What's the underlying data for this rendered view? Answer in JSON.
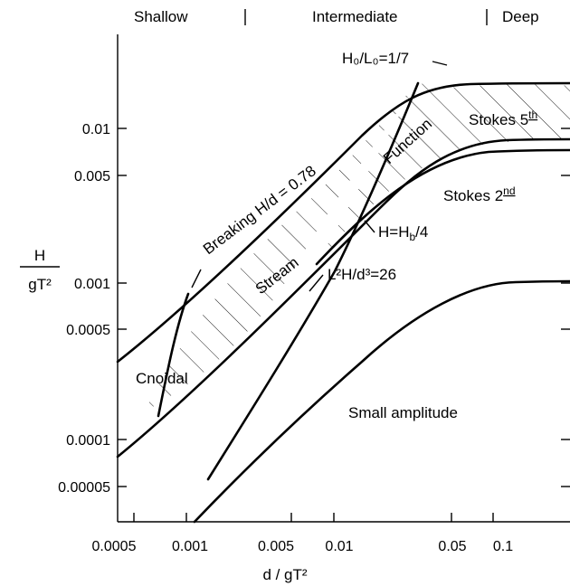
{
  "header": {
    "shallow": "Shallow",
    "intermediate": "Intermediate",
    "deep": "Deep"
  },
  "axes": {
    "x_label": "d / gT²",
    "y_label_num": "H",
    "y_label_den": "gT²",
    "x_ticks": [
      "0.0005",
      "0.001",
      "0.005",
      "0.01",
      "0.05",
      "0.1"
    ],
    "y_ticks": [
      "0.01",
      "0.005",
      "0.001",
      "0.0005",
      "0.0001",
      "0.00005"
    ]
  },
  "regions": {
    "stokes5": "Stokes 5",
    "stokes5_sup": "th",
    "stokes2": "Stokes 2",
    "stokes2_sup": "nd",
    "cnoidal": "Cnoidal",
    "small_amplitude": "Small amplitude",
    "stream": "Stream",
    "function": "Function"
  },
  "curve_labels": {
    "h0l0": "H₀/L₀=1/7",
    "breaking": "Breaking H/d = 0.78",
    "hb4": "H=H",
    "hb4_sub": "b",
    "hb4_end": "/4",
    "ursell": "L²H/d³=26"
  }
}
